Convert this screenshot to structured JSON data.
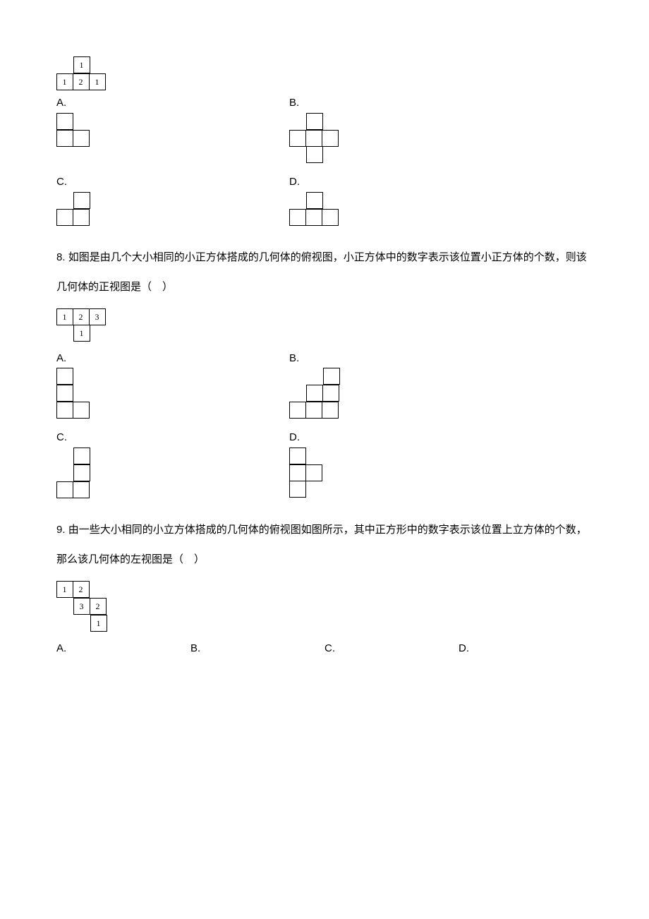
{
  "q7": {
    "topview": {
      "rows": [
        [
          null,
          "1",
          null
        ],
        [
          "1",
          "2",
          "1"
        ]
      ]
    },
    "opts": {
      "A": {
        "label": "A.",
        "rows": [
          [
            "f",
            "e"
          ],
          [
            "f",
            "f"
          ]
        ]
      },
      "B": {
        "label": "B.",
        "rows": [
          [
            "e",
            "f",
            "e"
          ],
          [
            "f",
            "f",
            "f"
          ],
          [
            "e",
            "f",
            "e"
          ]
        ]
      },
      "C": {
        "label": "C.",
        "rows": [
          [
            "e",
            "f"
          ],
          [
            "f",
            "f"
          ]
        ]
      },
      "D": {
        "label": "D.",
        "rows": [
          [
            "e",
            "f",
            "e"
          ],
          [
            "f",
            "f",
            "f"
          ]
        ]
      }
    }
  },
  "q8": {
    "num": "8.",
    "text": "如图是由几个大小相同的小正方体搭成的几何体的俯视图，小正方体中的数字表示该位置小正方体的个数，则该几何体的正视图是（　）",
    "topview": {
      "rows": [
        [
          "1",
          "2",
          "3"
        ],
        [
          null,
          "1",
          null
        ]
      ]
    },
    "opts": {
      "A": {
        "label": "A.",
        "rows": [
          [
            "f",
            "e"
          ],
          [
            "f",
            "e"
          ],
          [
            "f",
            "f"
          ]
        ]
      },
      "B": {
        "label": "B.",
        "rows": [
          [
            "e",
            "e",
            "f"
          ],
          [
            "e",
            "f",
            "f"
          ],
          [
            "f",
            "f",
            "f"
          ]
        ]
      },
      "C": {
        "label": "C.",
        "rows": [
          [
            "e",
            "f"
          ],
          [
            "e",
            "f"
          ],
          [
            "f",
            "f"
          ]
        ]
      },
      "D": {
        "label": "D.",
        "rows": [
          [
            "f",
            "e"
          ],
          [
            "f",
            "f"
          ],
          [
            "f",
            "e"
          ]
        ]
      }
    }
  },
  "q9": {
    "num": "9.",
    "text": "由一些大小相同的小立方体搭成的几何体的俯视图如图所示，其中正方形中的数字表示该位置上立方体的个数，那么该几何体的左视图是（　）",
    "topview": {
      "rows": [
        [
          "1",
          "2",
          null
        ],
        [
          null,
          "3",
          "2"
        ],
        [
          null,
          null,
          "1"
        ]
      ]
    },
    "opts": {
      "A": {
        "label": "A."
      },
      "B": {
        "label": "B."
      },
      "C": {
        "label": "C."
      },
      "D": {
        "label": "D."
      }
    }
  }
}
